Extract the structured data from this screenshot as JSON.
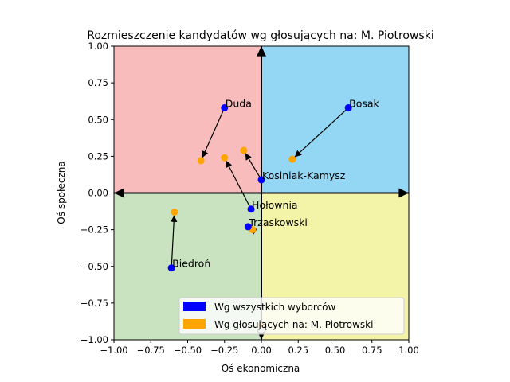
{
  "chart_data": {
    "type": "scatter",
    "title": "Rozmieszczenie kandydatów wg głosujących na: M. Piotrowski",
    "xlabel": "Oś ekonomiczna",
    "ylabel": "Oś społeczna",
    "xlim": [
      -1.0,
      1.0
    ],
    "ylim": [
      -1.0,
      1.0
    ],
    "x_ticks": [
      "−1.00",
      "−0.75",
      "−0.50",
      "−0.25",
      "0.00",
      "0.25",
      "0.50",
      "0.75",
      "1.00"
    ],
    "y_ticks": [
      "−1.00",
      "−0.75",
      "−0.50",
      "−0.25",
      "0.00",
      "0.25",
      "0.50",
      "0.75",
      "1.00"
    ],
    "x_tick_values": [
      -1.0,
      -0.75,
      -0.5,
      -0.25,
      0.0,
      0.25,
      0.5,
      0.75,
      1.0
    ],
    "y_tick_values": [
      -1.0,
      -0.75,
      -0.5,
      -0.25,
      0.0,
      0.25,
      0.5,
      0.75,
      1.0
    ],
    "quadrant_colors": {
      "top_left": "#f9bcbc",
      "top_right": "#93d7f5",
      "bottom_left": "#c9e3c0",
      "bottom_right": "#f3f4a8"
    },
    "all_color": "#0000ff",
    "voters_color": "#ffa500",
    "legend": {
      "position": "lower-right",
      "entries": [
        "Wg wszystkich wyborców",
        "Wg głosujących na: M. Piotrowski"
      ]
    },
    "series": [
      {
        "name": "Wg wszystkich wyborców",
        "points": [
          {
            "label": "Duda",
            "x": -0.25,
            "y": 0.58
          },
          {
            "label": "Bosak",
            "x": 0.59,
            "y": 0.58
          },
          {
            "label": "Kosiniak-Kamysz",
            "x": 0.0,
            "y": 0.09
          },
          {
            "label": "Hołownia",
            "x": -0.07,
            "y": -0.11
          },
          {
            "label": "Trzaskowski",
            "x": -0.09,
            "y": -0.23
          },
          {
            "label": "Biedroń",
            "x": -0.61,
            "y": -0.51
          },
          {
            "label": "",
            "x": 0.0,
            "y": -0.93
          }
        ]
      },
      {
        "name": "Wg głosujących na: M. Piotrowski",
        "points": [
          {
            "label": "Duda",
            "x": -0.41,
            "y": 0.22
          },
          {
            "label": "Bosak",
            "x": 0.21,
            "y": 0.23
          },
          {
            "label": "Kosiniak-Kamysz",
            "x": -0.12,
            "y": 0.29
          },
          {
            "label": "Hołownia",
            "x": -0.25,
            "y": 0.24
          },
          {
            "label": "Trzaskowski",
            "x": -0.06,
            "y": -0.25
          },
          {
            "label": "Biedroń",
            "x": -0.59,
            "y": -0.13
          },
          {
            "label": "",
            "x": 0.0,
            "y": -0.91
          }
        ]
      }
    ]
  }
}
